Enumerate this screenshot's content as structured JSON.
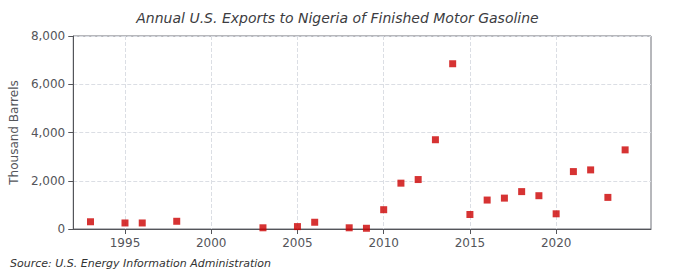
{
  "chart_data": {
    "type": "scatter",
    "title": "Annual U.S. Exports to Nigeria of Finished Motor Gasoline",
    "ylabel": "Thousand Barrels",
    "annotation": "Source: U.S. Energy Information Administration",
    "x": [
      1993,
      1995,
      1996,
      1998,
      2003,
      2005,
      2006,
      2008,
      2009,
      2010,
      2011,
      2012,
      2013,
      2014,
      2015,
      2016,
      2017,
      2018,
      2019,
      2020,
      2021,
      2022,
      2023,
      2024
    ],
    "values": [
      300,
      250,
      250,
      320,
      50,
      100,
      280,
      50,
      30,
      800,
      1900,
      2050,
      3700,
      6850,
      600,
      1200,
      1280,
      1550,
      1380,
      630,
      2380,
      2450,
      1310,
      3280
    ],
    "color": "#cc0000",
    "marker": "square",
    "xlim": [
      1992,
      2025.5
    ],
    "xticks": [
      1995,
      2000,
      2005,
      2010,
      2015,
      2020
    ],
    "ylim": [
      0,
      8000
    ],
    "yticks": [
      0,
      {
        "value": 2000,
        "label": "2,000"
      },
      {
        "value": 4000,
        "label": "4,000"
      },
      {
        "value": 6000,
        "label": "6,000"
      },
      {
        "value": 8000,
        "label": "8,000"
      }
    ],
    "grid": true
  }
}
